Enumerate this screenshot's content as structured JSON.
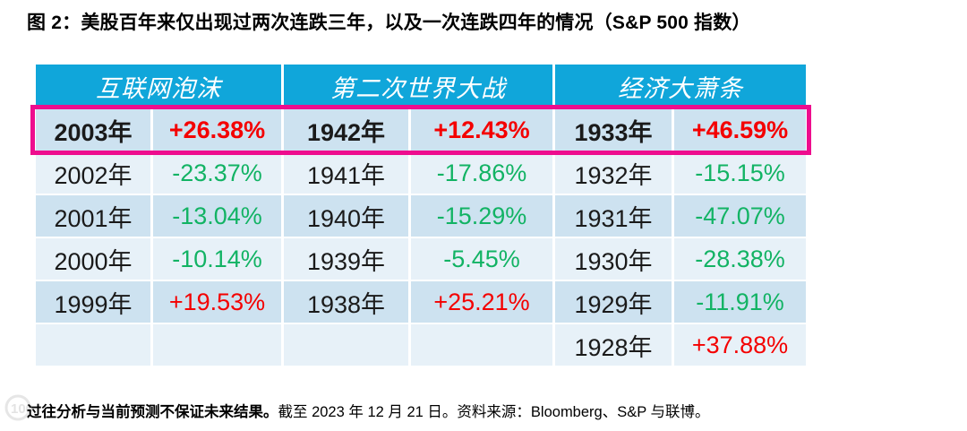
{
  "title": "图 2：美股百年来仅出现过两次连跌三年，以及一次连跌四年的情况（S&P 500 指数）",
  "table": {
    "groups": [
      {
        "label": "互联网泡沫"
      },
      {
        "label": "第二次世界大战"
      },
      {
        "label": "经济大萧条"
      }
    ],
    "rows": [
      {
        "highlight": true,
        "cells": [
          {
            "year": "2003年",
            "value": "+26.38%"
          },
          {
            "year": "1942年",
            "value": "+12.43%"
          },
          {
            "year": "1933年",
            "value": "+46.59%"
          }
        ]
      },
      {
        "highlight": false,
        "cells": [
          {
            "year": "2002年",
            "value": "-23.37%"
          },
          {
            "year": "1941年",
            "value": "-17.86%"
          },
          {
            "year": "1932年",
            "value": "-15.15%"
          }
        ]
      },
      {
        "highlight": false,
        "cells": [
          {
            "year": "2001年",
            "value": "-13.04%"
          },
          {
            "year": "1940年",
            "value": "-15.29%"
          },
          {
            "year": "1931年",
            "value": "-47.07%"
          }
        ]
      },
      {
        "highlight": false,
        "cells": [
          {
            "year": "2000年",
            "value": "-10.14%"
          },
          {
            "year": "1939年",
            "value": "-5.45%"
          },
          {
            "year": "1930年",
            "value": "-28.38%"
          }
        ]
      },
      {
        "highlight": false,
        "cells": [
          {
            "year": "1999年",
            "value": "+19.53%"
          },
          {
            "year": "1938年",
            "value": "+25.21%"
          },
          {
            "year": "1929年",
            "value": "-11.91%"
          }
        ]
      },
      {
        "highlight": false,
        "cells": [
          {
            "year": "",
            "value": ""
          },
          {
            "year": "",
            "value": ""
          },
          {
            "year": "1928年",
            "value": "+37.88%"
          }
        ]
      }
    ]
  },
  "footer": {
    "bold": "过往分析与当前预测不保证未来结果。",
    "rest": "截至 2023 年 12 月 21 日。资料来源：Bloomberg、S&P 与联博。"
  },
  "watermark": {
    "text": "100"
  },
  "colors": {
    "header_bg": "#10a6da",
    "highlight_border": "#ee0d8e",
    "positive_red": "#f40000",
    "negative_green": "#12b364",
    "stripe_dark": "#cde2f0",
    "stripe_light": "#e7f1f8"
  },
  "chart_data": {
    "type": "table",
    "title": "图 2：美股百年来仅出现过两次连跌三年，以及一次连跌四年的情况（S&P 500 指数）",
    "legend_entries": [
      "互联网泡沫",
      "第二次世界大战",
      "经济大萧条"
    ],
    "series": [
      {
        "name": "互联网泡沫",
        "x": [
          "2003年",
          "2002年",
          "2001年",
          "2000年",
          "1999年"
        ],
        "values": [
          26.38,
          -23.37,
          -13.04,
          -10.14,
          19.53
        ]
      },
      {
        "name": "第二次世界大战",
        "x": [
          "1942年",
          "1941年",
          "1940年",
          "1939年",
          "1938年"
        ],
        "values": [
          12.43,
          -17.86,
          -15.29,
          -5.45,
          25.21
        ]
      },
      {
        "name": "经济大萧条",
        "x": [
          "1933年",
          "1932年",
          "1931年",
          "1930年",
          "1929年",
          "1928年"
        ],
        "values": [
          46.59,
          -15.15,
          -47.07,
          -28.38,
          -11.91,
          37.88
        ]
      }
    ],
    "annotations": [
      "首行（2003年 +26.38%、1942年 +12.43%、1933年 +46.59%）用洋红色方框高亮",
      "正值显示为红色，负值显示为绿色"
    ],
    "note": "过往分析与当前预测不保证未来结果。截至 2023 年 12 月 21 日。资料来源：Bloomberg、S&P 与联博。"
  }
}
